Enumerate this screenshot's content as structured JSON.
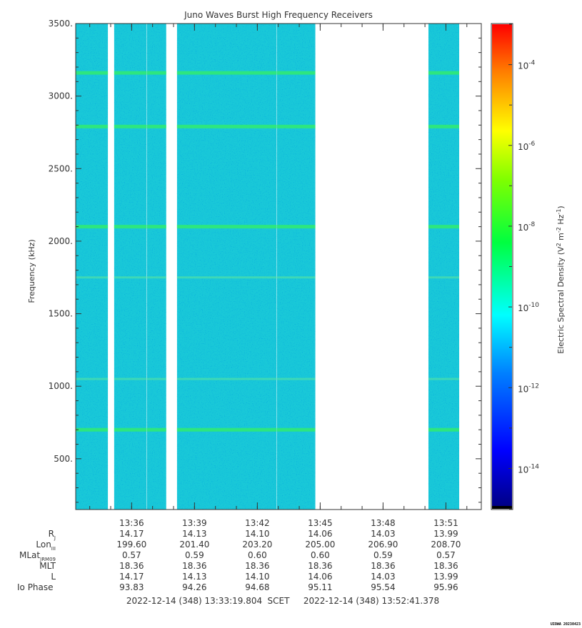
{
  "chart_data": {
    "type": "heatmap",
    "title": "Juno Waves Burst High Frequency Receivers",
    "ylabel": "Frequency (kHz)",
    "colorbar_label": "Electric Spectral Density (V² m⁻² Hz⁻¹)",
    "colorbar_label_parts": {
      "base": "Electric Spectral Density (V",
      "e1": "2",
      "m": " m",
      "e2": "-2",
      "hz": " Hz",
      "e3": "-1",
      "close": ")"
    },
    "ylim": [
      150,
      3500
    ],
    "y_ticks": [
      500,
      1000,
      1500,
      2000,
      2500,
      3000,
      3500
    ],
    "y_tick_labels": [
      "500.",
      "1000.",
      "1500.",
      "2000.",
      "2500.",
      "3000.",
      "3500."
    ],
    "x_range_minutes": [
      "13:33:19.804",
      "13:52:41.378"
    ],
    "x_tick_labels": [
      "13:36",
      "13:39",
      "13:42",
      "13:45",
      "13:48",
      "13:51"
    ],
    "colorbar_ticks_log10": [
      -4,
      -6,
      -8,
      -10,
      -12,
      -14
    ],
    "colorbar_tick_base": "10",
    "colorbar_tick_exps": [
      "-4",
      "-6",
      "-8",
      "-10",
      "-12",
      "-14"
    ],
    "colorbar_range_log10": [
      -15,
      -3
    ],
    "background_level_log10": -11.6,
    "emission_lines_khz": [
      700,
      1050,
      1750,
      2100,
      2790,
      3160
    ],
    "data_segments": [
      [
        "13:33:20",
        "13:34:52"
      ],
      [
        "13:35:10",
        "13:36:43"
      ],
      [
        "13:36:44",
        "13:37:39"
      ],
      [
        "13:38:10",
        "13:42:55"
      ],
      [
        "13:42:56",
        "13:44:46"
      ],
      [
        "13:50:10",
        "13:51:38"
      ]
    ],
    "colormap": [
      "#00007f",
      "#0000ff",
      "#007fff",
      "#00ffff",
      "#7fff7f",
      "#ffff00",
      "#ff7f00",
      "#ff0000",
      "#7f0000"
    ]
  },
  "ephemeris": {
    "rows": [
      {
        "label": "R",
        "sub": "J",
        "values": [
          "14.17",
          "14.13",
          "14.10",
          "14.06",
          "14.03",
          "13.99"
        ]
      },
      {
        "label": "Lon",
        "sub": "III",
        "values": [
          "199.60",
          "201.40",
          "203.20",
          "205.00",
          "206.90",
          "208.70"
        ]
      },
      {
        "label": "MLat",
        "sub": "JRM09",
        "values": [
          "0.57",
          "0.59",
          "0.60",
          "0.60",
          "0.59",
          "0.57"
        ]
      },
      {
        "label": "MLT",
        "sub": "",
        "values": [
          "18.36",
          "18.36",
          "18.36",
          "18.36",
          "18.36",
          "18.36"
        ]
      },
      {
        "label": "L",
        "sub": "",
        "values": [
          "14.17",
          "14.13",
          "14.10",
          "14.06",
          "14.03",
          "13.99"
        ]
      },
      {
        "label": "Io Phase",
        "sub": "",
        "values": [
          "93.83",
          "94.26",
          "94.68",
          "95.11",
          "95.54",
          "95.96"
        ]
      }
    ]
  },
  "time_range": {
    "start": "2022-12-14 (348) 13:33:19.804",
    "label": "SCET",
    "end": "2022-12-14 (348) 13:52:41.378"
  },
  "credit": "UIOWA 20230423"
}
